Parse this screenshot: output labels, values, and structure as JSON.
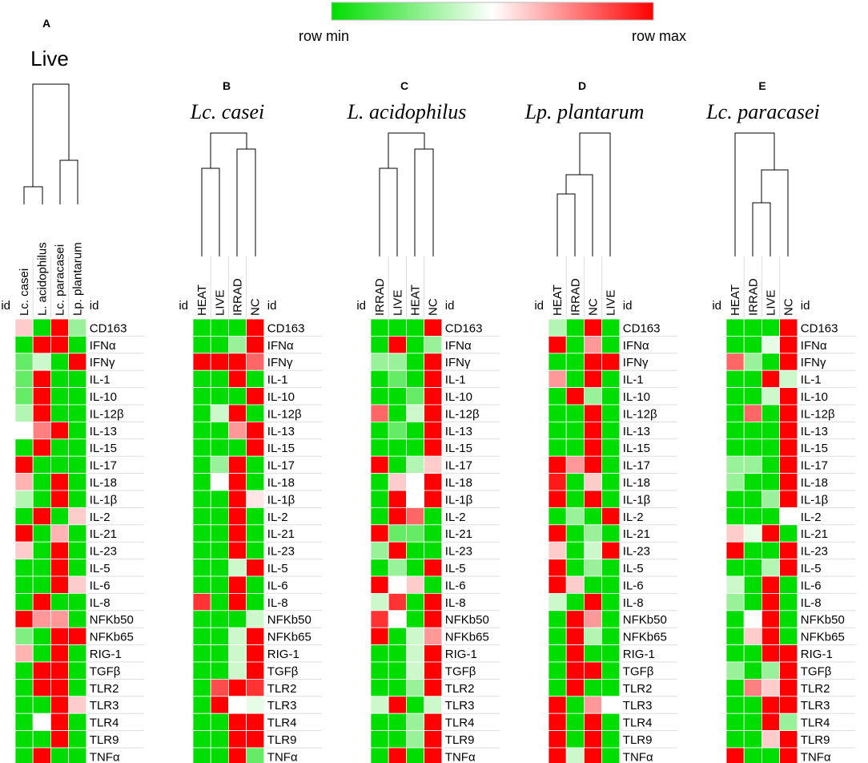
{
  "legend": {
    "min_label": "row min",
    "max_label": "row max",
    "colors": [
      "#00dd00",
      "#ffffff",
      "#ff0000"
    ]
  },
  "id_label": "id",
  "chart_data": {
    "type": "heatmap",
    "value_scale": "row-normalized, 0 = row min (green), 1 = row max (red)",
    "rows": [
      "CD163",
      "IFNα",
      "IFNγ",
      "IL-1",
      "IL-10",
      "IL-12β",
      "IL-13",
      "IL-15",
      "IL-17",
      "IL-18",
      "IL-1β",
      "IL-2",
      "IL-21",
      "IL-23",
      "IL-5",
      "IL-6",
      "IL-8",
      "NFKb50",
      "NFKb65",
      "RIG-1",
      "TGFβ",
      "TLR2",
      "TLR3",
      "TLR4",
      "TLR9",
      "TNFα"
    ],
    "panels": [
      {
        "letter": "A",
        "title": "Live",
        "columns": [
          "Lc. casei",
          "L. acidophilus",
          "Lc. paracasei",
          "Lp. plantarum"
        ],
        "values": [
          [
            0.6,
            0,
            1,
            0.3
          ],
          [
            0,
            1,
            1,
            0
          ],
          [
            0.2,
            0.4,
            0,
            1
          ],
          [
            0.2,
            1,
            0,
            0
          ],
          [
            0.2,
            1,
            0,
            0
          ],
          [
            0.35,
            1,
            0,
            0
          ],
          [
            0.5,
            0.75,
            1,
            0
          ],
          [
            0,
            1,
            0,
            0
          ],
          [
            1,
            0,
            0,
            0
          ],
          [
            0.65,
            0,
            1,
            0
          ],
          [
            0.35,
            0,
            1,
            0
          ],
          [
            0,
            1,
            0,
            0.6
          ],
          [
            1,
            0,
            0.65,
            0
          ],
          [
            0.6,
            0,
            1,
            0
          ],
          [
            0,
            0,
            1,
            0
          ],
          [
            0,
            0,
            1,
            0.6
          ],
          [
            0,
            1,
            0,
            0
          ],
          [
            1,
            0.7,
            0.7,
            0
          ],
          [
            0.25,
            0,
            1,
            1
          ],
          [
            0.65,
            0,
            1,
            0
          ],
          [
            0,
            1,
            1,
            0
          ],
          [
            0,
            1,
            1,
            0
          ],
          [
            0,
            0,
            1,
            0.6
          ],
          [
            0,
            0.5,
            1,
            0
          ],
          [
            0,
            0,
            1,
            0
          ],
          [
            0,
            1,
            0,
            0
          ]
        ]
      },
      {
        "letter": "B",
        "title": "Lc. casei",
        "columns": [
          "HEAT",
          "LIVE",
          "IRRAD",
          "NC"
        ],
        "values": [
          [
            0,
            0,
            0,
            1
          ],
          [
            0,
            0,
            0.3,
            1
          ],
          [
            1,
            1,
            1,
            0.8
          ],
          [
            0,
            0,
            1,
            0
          ],
          [
            0,
            0,
            0,
            1
          ],
          [
            0,
            0.4,
            1,
            0
          ],
          [
            0,
            0,
            0.7,
            1
          ],
          [
            0,
            0,
            0,
            1
          ],
          [
            0,
            0.3,
            1,
            0
          ],
          [
            0,
            0.5,
            1,
            0
          ],
          [
            0,
            0,
            1,
            0.55
          ],
          [
            0,
            0,
            1,
            0
          ],
          [
            0,
            0,
            1,
            0
          ],
          [
            0,
            0,
            1,
            0
          ],
          [
            0,
            0,
            0.4,
            1
          ],
          [
            0,
            0,
            1,
            0
          ],
          [
            0.9,
            0,
            1,
            0
          ],
          [
            0,
            0,
            0,
            0.4
          ],
          [
            0,
            0,
            0.4,
            1
          ],
          [
            0,
            0,
            0.4,
            1
          ],
          [
            0,
            0,
            0.4,
            1
          ],
          [
            0,
            0.85,
            1,
            0.9
          ],
          [
            0,
            1,
            0.5,
            0.45
          ],
          [
            0,
            0,
            1,
            1
          ],
          [
            0,
            0,
            1,
            1
          ],
          [
            0,
            0,
            1,
            0.2
          ]
        ]
      },
      {
        "letter": "C",
        "title": "L. acidophilus",
        "columns": [
          "IRRAD",
          "LIVE",
          "HEAT",
          "NC"
        ],
        "values": [
          [
            0,
            0,
            0,
            1
          ],
          [
            0,
            1,
            0,
            0.3
          ],
          [
            0.3,
            0.3,
            0,
            1
          ],
          [
            0,
            0.2,
            0,
            1
          ],
          [
            0,
            0,
            0.2,
            1
          ],
          [
            0.8,
            0,
            0.4,
            1
          ],
          [
            0,
            0.2,
            0,
            1
          ],
          [
            0,
            0,
            0,
            1
          ],
          [
            1,
            0,
            0.35,
            0.6
          ],
          [
            0,
            0.6,
            0.5,
            1
          ],
          [
            0,
            1,
            0.5,
            1
          ],
          [
            0,
            1,
            0.8,
            0
          ],
          [
            1,
            0.2,
            0.2,
            0
          ],
          [
            0.3,
            1,
            0,
            0
          ],
          [
            0,
            0.3,
            0,
            1
          ],
          [
            1,
            0.5,
            0.6,
            0
          ],
          [
            0.4,
            0.9,
            0,
            1
          ],
          [
            0.9,
            0.5,
            0,
            1
          ],
          [
            1,
            0,
            0.4,
            0.7
          ],
          [
            0,
            0,
            0.4,
            1
          ],
          [
            0,
            0,
            0.4,
            1
          ],
          [
            0,
            0,
            0.3,
            1
          ],
          [
            0.4,
            1,
            0,
            0.4
          ],
          [
            0,
            0,
            0.3,
            1
          ],
          [
            0,
            0,
            0.3,
            1
          ],
          [
            0,
            1,
            0,
            1
          ]
        ]
      },
      {
        "letter": "D",
        "title": "Lp. plantarum",
        "columns": [
          "HEAT",
          "IRRAD",
          "NC",
          "LIVE"
        ],
        "values": [
          [
            0.35,
            0,
            1,
            0
          ],
          [
            1,
            0,
            0.7,
            0
          ],
          [
            0,
            0,
            1,
            1
          ],
          [
            0.7,
            0,
            1,
            0
          ],
          [
            0,
            1,
            0.3,
            0
          ],
          [
            0,
            0,
            1,
            0
          ],
          [
            0,
            0,
            1,
            0
          ],
          [
            0,
            0,
            1,
            0
          ],
          [
            1,
            0.7,
            1,
            0
          ],
          [
            0.95,
            0,
            0.6,
            0
          ],
          [
            1,
            0,
            1,
            0
          ],
          [
            0,
            0.3,
            0,
            1
          ],
          [
            1,
            0,
            0.3,
            0
          ],
          [
            0.6,
            0,
            0.4,
            1
          ],
          [
            1,
            0,
            0.3,
            0
          ],
          [
            1,
            0.6,
            0,
            0
          ],
          [
            0.4,
            0,
            1,
            0
          ],
          [
            0,
            1,
            0.7,
            0
          ],
          [
            0,
            1,
            0.35,
            0
          ],
          [
            0,
            1,
            0,
            0
          ],
          [
            0,
            1,
            1,
            0
          ],
          [
            0,
            1,
            0,
            0
          ],
          [
            1,
            0,
            0.7,
            0.5
          ],
          [
            1,
            0,
            1,
            0
          ],
          [
            1,
            0,
            1,
            0
          ],
          [
            1,
            0.4,
            1,
            0
          ]
        ]
      },
      {
        "letter": "E",
        "title": "Lc. paracasei",
        "columns": [
          "HEAT",
          "IRRAD",
          "LIVE",
          "NC"
        ],
        "values": [
          [
            0,
            0,
            0,
            1
          ],
          [
            0,
            0,
            0.45,
            1
          ],
          [
            0.8,
            0.3,
            0,
            1
          ],
          [
            0,
            0,
            1,
            0.4
          ],
          [
            0,
            0,
            0.4,
            1
          ],
          [
            0,
            0.8,
            0,
            1
          ],
          [
            0,
            0,
            0,
            1
          ],
          [
            0,
            0,
            0,
            1
          ],
          [
            0.3,
            0.3,
            0,
            1
          ],
          [
            0.3,
            0,
            0,
            1
          ],
          [
            0,
            0,
            0.3,
            1
          ],
          [
            0,
            0,
            0,
            0.5
          ],
          [
            0.6,
            0.45,
            1,
            0
          ],
          [
            1,
            0,
            0,
            1
          ],
          [
            0,
            0,
            0.35,
            1
          ],
          [
            0.4,
            0,
            1,
            0
          ],
          [
            0.3,
            0,
            1,
            0
          ],
          [
            0,
            0.5,
            1,
            0
          ],
          [
            0,
            0.6,
            1,
            0
          ],
          [
            0,
            0,
            1,
            1
          ],
          [
            0.3,
            0,
            0.3,
            1
          ],
          [
            0,
            0.75,
            0.6,
            1
          ],
          [
            0,
            0,
            1,
            1
          ],
          [
            0,
            0,
            1,
            0.3
          ],
          [
            0,
            0,
            0.6,
            1
          ],
          [
            1,
            0,
            0,
            1
          ]
        ]
      }
    ]
  }
}
